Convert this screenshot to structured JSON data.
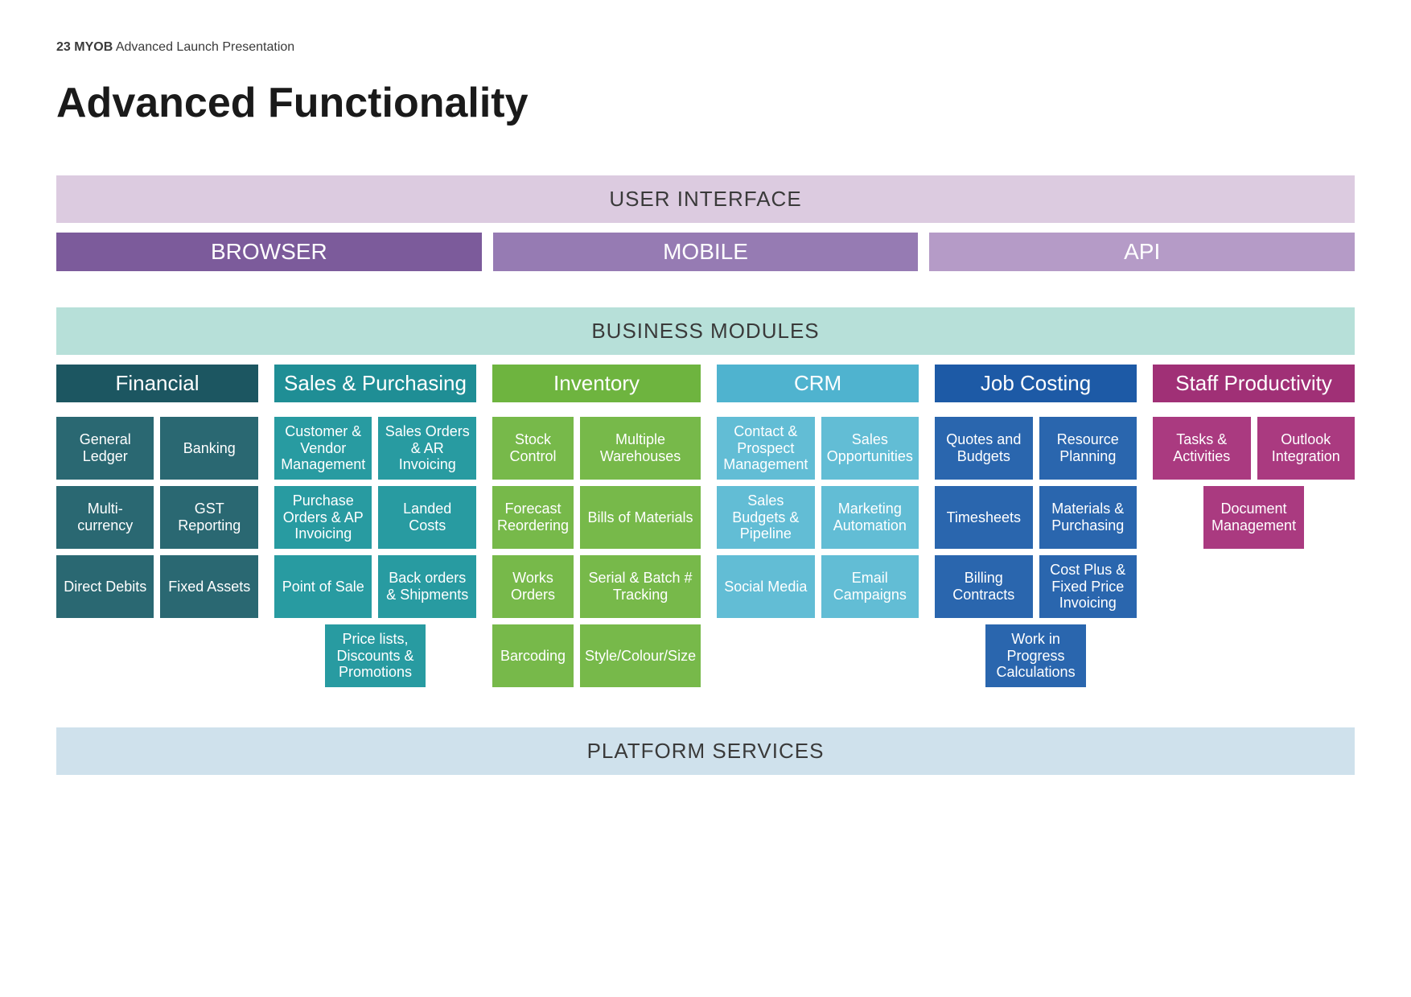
{
  "header": {
    "page_num": "23",
    "brand": "MYOB",
    "subtitle": "Advanced Launch Presentation"
  },
  "title": "Advanced Functionality",
  "ui_bar": {
    "label": "USER INTERFACE",
    "bg": "#dccbe0",
    "fg": "#3a3a3a"
  },
  "ui_channels": [
    {
      "label": "BROWSER",
      "bg": "#7c5b9b",
      "fg": "#ffffff"
    },
    {
      "label": "MOBILE",
      "bg": "#967bb3",
      "fg": "#ffffff"
    },
    {
      "label": "API",
      "bg": "#b59bc7",
      "fg": "#ffffff"
    }
  ],
  "modules_bar": {
    "label": "BUSINESS MODULES",
    "bg": "#b7e0d9",
    "fg": "#3a3a3a"
  },
  "modules": [
    {
      "name": "Financial",
      "header_bg": "#1c5661",
      "tile_bg": "#2a6872",
      "items": [
        "General Ledger",
        "Banking",
        "Multi-currency",
        "GST Reporting",
        "Direct Debits",
        "Fixed Assets"
      ],
      "extra": null
    },
    {
      "name": "Sales & Purchasing",
      "header_bg": "#1f8e95",
      "tile_bg": "#289ba1",
      "items": [
        "Customer & Vendor Management",
        "Sales Orders & AR Invoicing",
        "Purchase Orders & AP Invoicing",
        "Landed Costs",
        "Point of Sale",
        "Back orders & Shipments"
      ],
      "extra": "Price lists, Discounts & Promotions"
    },
    {
      "name": "Inventory",
      "header_bg": "#6eb43f",
      "tile_bg": "#77b94a",
      "items": [
        "Stock Control",
        "Multiple Warehouses",
        "Forecast Reordering",
        "Bills of Materials",
        "Works Orders",
        "Serial & Batch # Tracking",
        "Barcoding",
        "Style/Colour/Size"
      ],
      "extra": null
    },
    {
      "name": "CRM",
      "header_bg": "#4fb3cf",
      "tile_bg": "#62bdd5",
      "items": [
        "Contact & Prospect Management",
        "Sales Opportunities",
        "Sales Budgets & Pipeline",
        "Marketing Automation",
        "Social Media",
        "Email Campaigns"
      ],
      "extra": null
    },
    {
      "name": "Job Costing",
      "header_bg": "#1d5aa6",
      "tile_bg": "#2a66ae",
      "items": [
        "Quotes and Budgets",
        "Resource Planning",
        "Timesheets",
        "Materials & Purchasing",
        "Billing Contracts",
        "Cost Plus & Fixed Price Invoicing"
      ],
      "extra": "Work in Progress Calculations"
    },
    {
      "name": "Staff Productivity",
      "header_bg": "#a03076",
      "tile_bg": "#aa3a80",
      "items": [
        "Tasks & Activities",
        "Outlook Integration"
      ],
      "extra": "Document Management"
    }
  ],
  "platform_bar": {
    "label": "PLATFORM SERVICES",
    "bg": "#cfe1ec",
    "fg": "#3a3a3a"
  }
}
